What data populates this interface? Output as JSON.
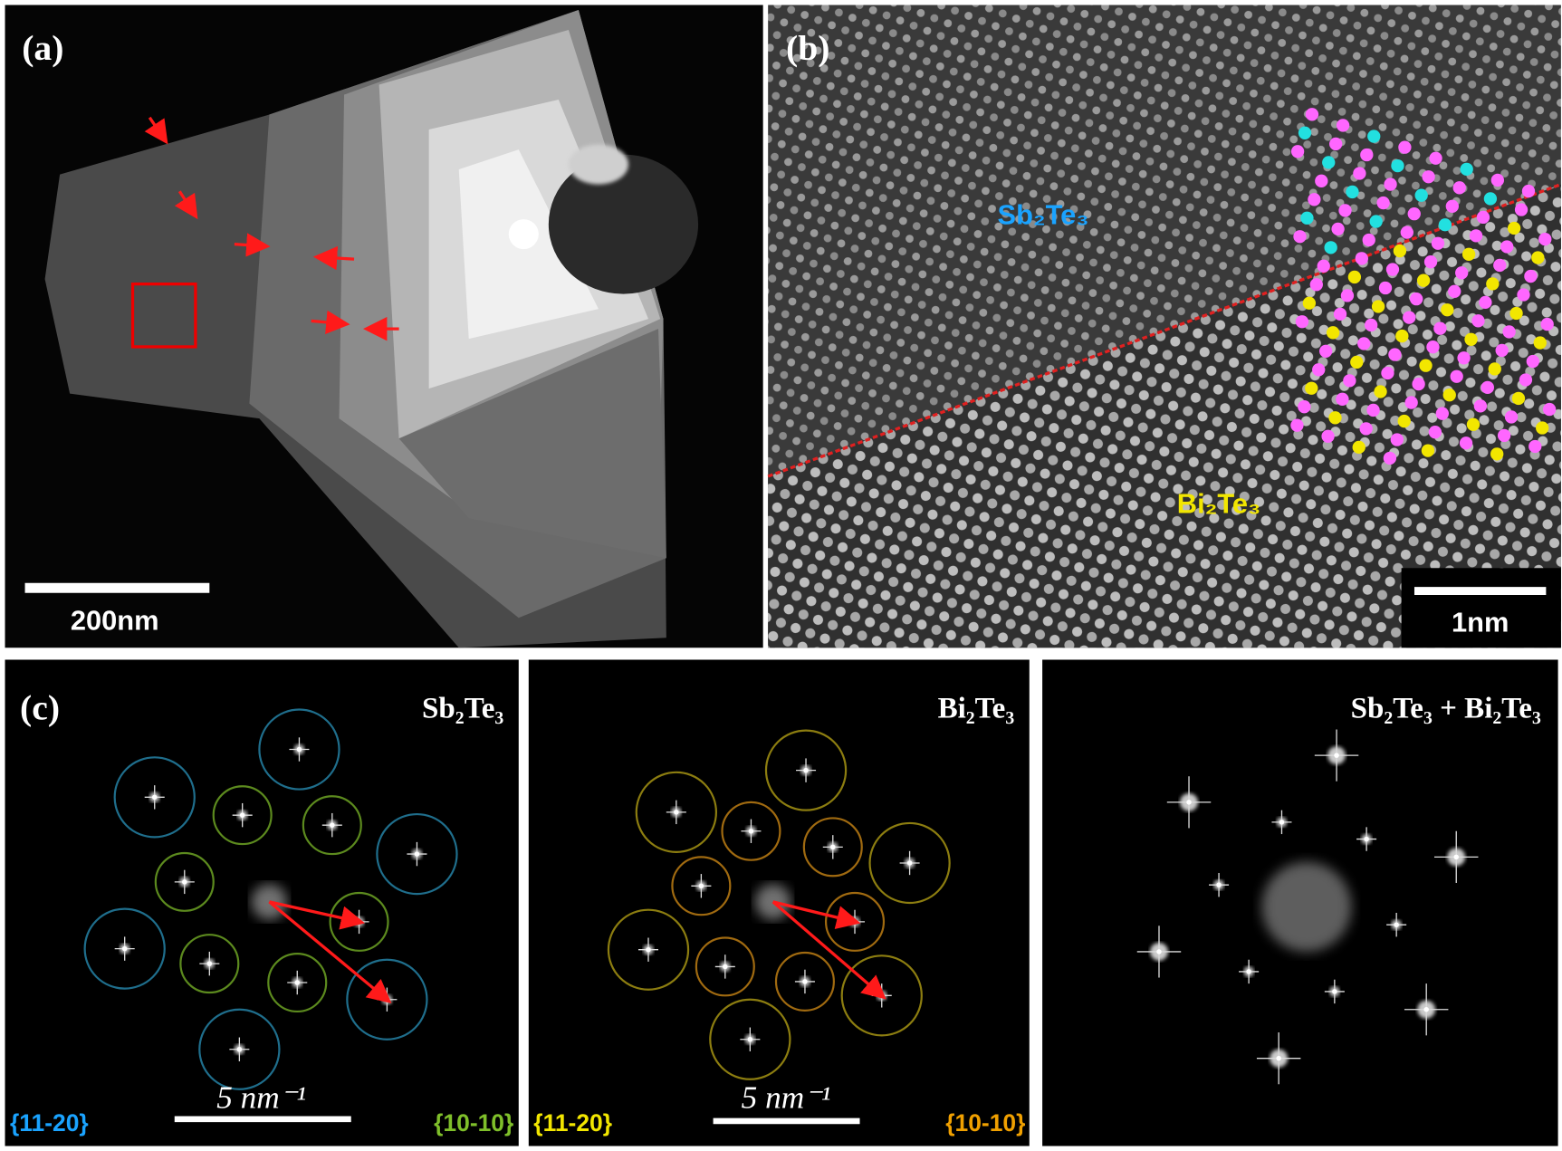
{
  "panels": {
    "a": {
      "label": "(a)",
      "scale_bar": "200nm"
    },
    "b": {
      "label": "(b)",
      "upper_phase": "Sb₂Te₃",
      "lower_phase": "Bi₂Te₃",
      "scale_bar": "1nm"
    },
    "c": {
      "label": "(c)",
      "ffts": [
        {
          "title": "Sb₂Te₃",
          "scale_bar": "5 nm⁻¹",
          "left_index": "{11-20}",
          "right_index": "{10-10}"
        },
        {
          "title": "Bi₂Te₃",
          "scale_bar": "5 nm⁻¹",
          "left_index": "{11-20}",
          "right_index": "{10-10}"
        },
        {
          "title": "Sb₂Te₃ + Bi₂Te₃"
        }
      ]
    }
  }
}
